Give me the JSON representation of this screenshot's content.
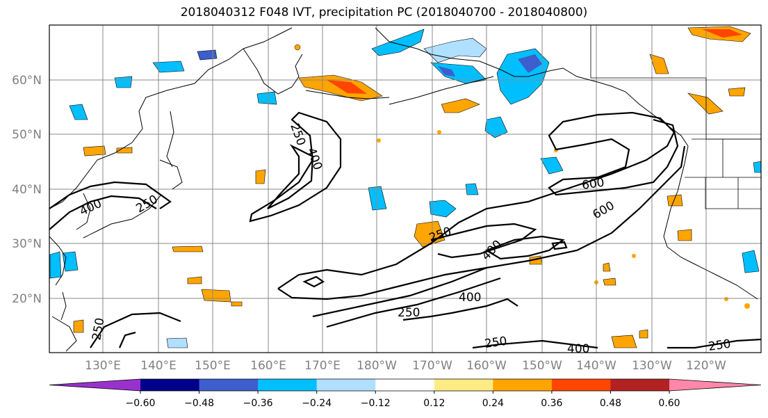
{
  "title": "2018040312 F048 IVT, precipitation PC (2018040700 - 2018040800)",
  "map": {
    "lat_labels": [
      "60°N",
      "50°N",
      "40°N",
      "30°N",
      "20°N"
    ],
    "lon_labels": [
      "130°E",
      "140°E",
      "150°E",
      "160°E",
      "170°E",
      "180°W",
      "170°W",
      "160°W",
      "150°W",
      "140°W",
      "130°W",
      "120°W"
    ],
    "ivt_contour_labels": [
      "250",
      "400",
      "250",
      "400",
      "600",
      "250",
      "400",
      "250",
      "250",
      "400",
      "600",
      "400",
      "250",
      "250",
      "400",
      "250"
    ]
  },
  "colorbar": {
    "ticks": [
      "−0.60",
      "−0.48",
      "−0.36",
      "−0.24",
      "−0.12",
      "0.12",
      "0.24",
      "0.36",
      "0.48",
      "0.60"
    ],
    "colors": [
      "#9932cc",
      "#00008b",
      "#3d5ecc",
      "#00bfff",
      "#b0e0ff",
      "#ffffff",
      "#ffeb84",
      "#ffa500",
      "#ff4500",
      "#b22222",
      "#ff88aa"
    ]
  }
}
